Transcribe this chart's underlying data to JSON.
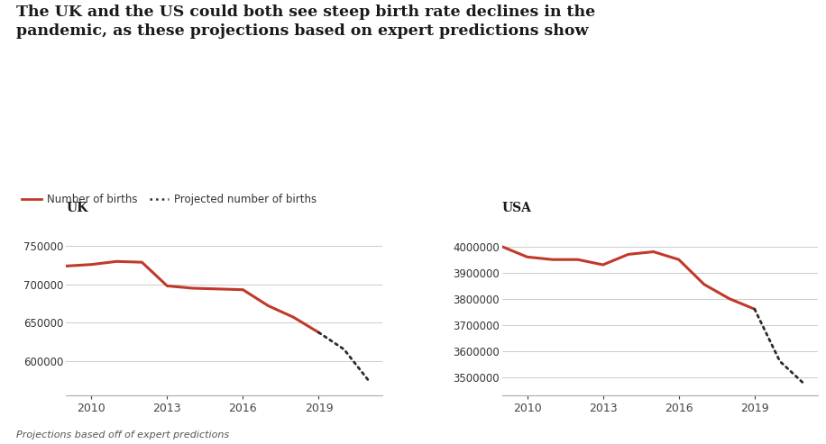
{
  "title": "The UK and the US could both see steep birth rate declines in the\npandemic, as these projections based on expert predictions show",
  "legend_solid": "Number of births",
  "legend_dotted": "Projected number of births",
  "footnote": "Projections based off of expert predictions",
  "line_color": "#c0392b",
  "dot_color": "#2c2c2c",
  "background_color": "#ffffff",
  "grid_color": "#cccccc",
  "uk_label": "UK",
  "uk_years_solid": [
    2009,
    2010,
    2011,
    2012,
    2013,
    2014,
    2015,
    2016,
    2017,
    2018,
    2019
  ],
  "uk_values_solid": [
    724000,
    726000,
    730000,
    729000,
    698000,
    695000,
    694000,
    693000,
    672000,
    657000,
    637000
  ],
  "uk_years_dotted": [
    2019,
    2020,
    2021
  ],
  "uk_values_dotted": [
    637000,
    615000,
    573000
  ],
  "uk_ylim": [
    555000,
    770000
  ],
  "uk_yticks": [
    600000,
    650000,
    700000,
    750000
  ],
  "uk_xticks": [
    2010,
    2013,
    2016,
    2019
  ],
  "usa_label": "USA",
  "usa_years_solid": [
    2009,
    2010,
    2011,
    2012,
    2013,
    2014,
    2015,
    2016,
    2017,
    2018,
    2019
  ],
  "usa_values_solid": [
    4000000,
    3960000,
    3950000,
    3950000,
    3930000,
    3970000,
    3980000,
    3950000,
    3855000,
    3800000,
    3760000
  ],
  "usa_years_dotted": [
    2019,
    2020,
    2021
  ],
  "usa_values_dotted": [
    3760000,
    3560000,
    3470000
  ],
  "usa_ylim": [
    3430000,
    4060000
  ],
  "usa_yticks": [
    3500000,
    3600000,
    3700000,
    3800000,
    3900000,
    4000000
  ],
  "usa_xticks": [
    2010,
    2013,
    2016,
    2019
  ]
}
